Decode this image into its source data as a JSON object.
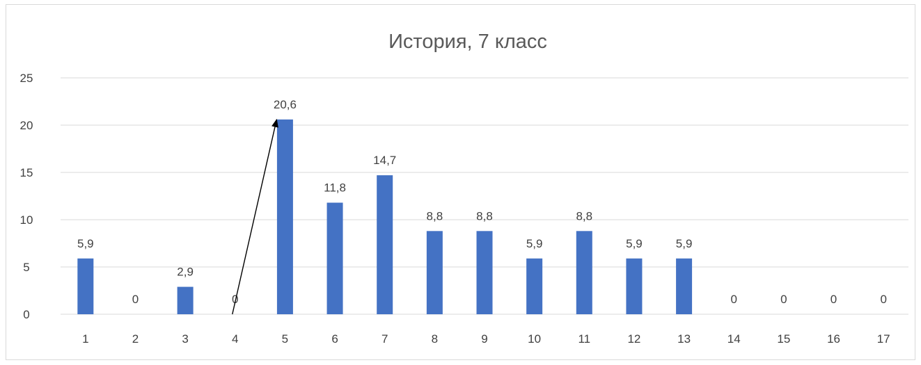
{
  "chart_data": {
    "type": "bar",
    "title": "История, 7 класс",
    "xlabel": "",
    "ylabel": "",
    "categories": [
      "1",
      "2",
      "3",
      "4",
      "5",
      "6",
      "7",
      "8",
      "9",
      "10",
      "11",
      "12",
      "13",
      "14",
      "15",
      "16",
      "17"
    ],
    "values": [
      5.9,
      0,
      2.9,
      0,
      20.6,
      11.8,
      14.7,
      8.8,
      8.8,
      5.9,
      8.8,
      5.9,
      5.9,
      0,
      0,
      0,
      0
    ],
    "data_labels": [
      "5,9",
      "0",
      "2,9",
      "0",
      "20,6",
      "11,8",
      "14,7",
      "8,8",
      "8,8",
      "5,9",
      "8,8",
      "5,9",
      "5,9",
      "0",
      "0",
      "0",
      "0"
    ],
    "ylim": [
      0,
      25
    ],
    "yticks": [
      0,
      5,
      10,
      15,
      20,
      25
    ],
    "grid": true,
    "legend": "none",
    "bar_color": "#4472c4",
    "grid_color": "#d9d9d9",
    "annotation": {
      "type": "arrow",
      "from": {
        "x": 4,
        "y": 0
      },
      "to": {
        "x": 5,
        "y": 20.6
      },
      "color": "#000000"
    }
  }
}
